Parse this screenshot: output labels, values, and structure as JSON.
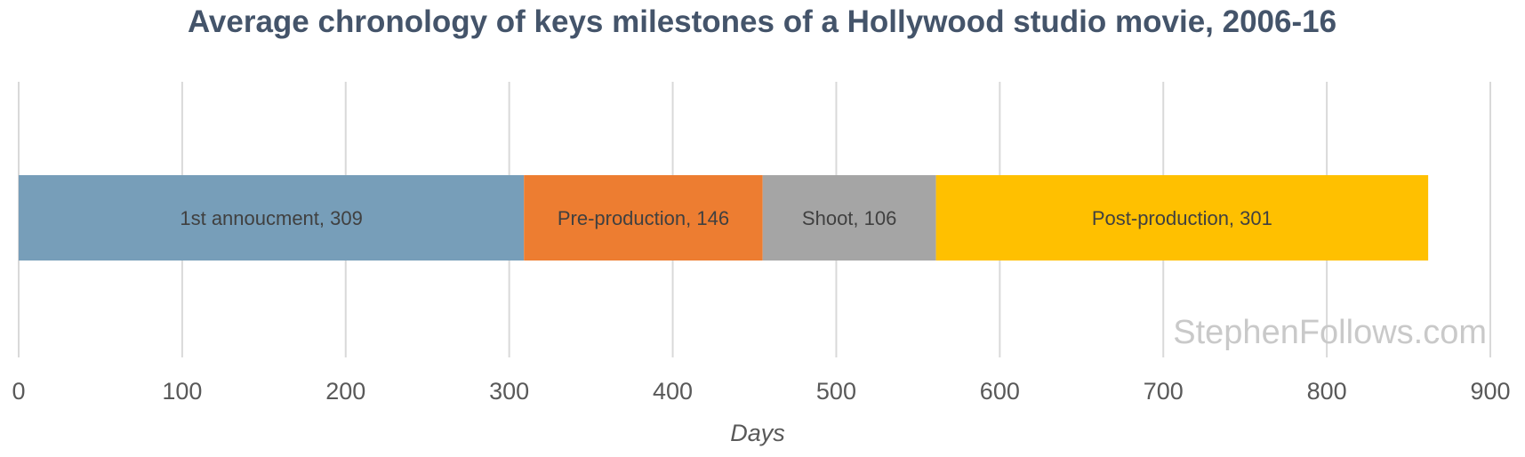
{
  "chart_data": {
    "type": "bar",
    "orientation": "horizontal",
    "stacked": true,
    "title": "Average chronology of keys milestones of a Hollywood studio movie, 2006-16",
    "xlabel": "Days",
    "ylabel": "",
    "xlim": [
      0,
      900
    ],
    "xticks": [
      "0",
      "100",
      "200",
      "300",
      "400",
      "500",
      "600",
      "700",
      "800",
      "900"
    ],
    "grid": true,
    "series": [
      {
        "name": "1st annoucment",
        "value": 309,
        "label": "1st annoucment, 309",
        "color": "#779eb9"
      },
      {
        "name": "Pre-production",
        "value": 146,
        "label": "Pre-production, 146",
        "color": "#ed7d31"
      },
      {
        "name": "Shoot",
        "value": 106,
        "label": "Shoot, 106",
        "color": "#a5a5a5"
      },
      {
        "name": "Post-production",
        "value": 301,
        "label": "Post-production, 301",
        "color": "#ffc000"
      }
    ]
  },
  "watermark": "StephenFollows.com"
}
